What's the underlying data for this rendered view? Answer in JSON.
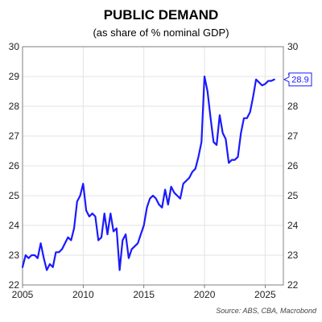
{
  "chart_data": {
    "type": "line",
    "title": "PUBLIC DEMAND",
    "subtitle": "(as share of % nominal GDP)",
    "source": "Source: ABS, CBA, Macrobond",
    "xlim": [
      2005,
      2026.5
    ],
    "ylim": [
      22,
      30
    ],
    "x_ticks": [
      "2005",
      "2010",
      "2015",
      "2020",
      "2025"
    ],
    "y_ticks": [
      "22",
      "23",
      "24",
      "25",
      "26",
      "27",
      "28",
      "29",
      "30"
    ],
    "grid": true,
    "line_color": "#1a1aff",
    "last_value_label": "28.9",
    "series": [
      {
        "name": "",
        "x": [
          2005.0,
          2005.25,
          2005.5,
          2005.75,
          2006.0,
          2006.25,
          2006.5,
          2006.75,
          2007.0,
          2007.25,
          2007.5,
          2007.75,
          2008.0,
          2008.25,
          2008.5,
          2008.75,
          2009.0,
          2009.25,
          2009.5,
          2009.75,
          2010.0,
          2010.25,
          2010.5,
          2010.75,
          2011.0,
          2011.25,
          2011.5,
          2011.75,
          2012.0,
          2012.25,
          2012.5,
          2012.75,
          2013.0,
          2013.25,
          2013.5,
          2013.75,
          2014.0,
          2014.25,
          2014.5,
          2014.75,
          2015.0,
          2015.25,
          2015.5,
          2015.75,
          2016.0,
          2016.25,
          2016.5,
          2016.75,
          2017.0,
          2017.25,
          2017.5,
          2017.75,
          2018.0,
          2018.25,
          2018.5,
          2018.75,
          2019.0,
          2019.25,
          2019.5,
          2019.75,
          2020.0,
          2020.25,
          2020.5,
          2020.75,
          2021.0,
          2021.25,
          2021.5,
          2021.75,
          2022.0,
          2022.25,
          2022.5,
          2022.75,
          2023.0,
          2023.25,
          2023.5,
          2023.75,
          2024.0,
          2024.25,
          2024.5,
          2024.75,
          2025.0,
          2025.25,
          2025.5,
          2025.75
        ],
        "values": [
          22.6,
          23.0,
          22.9,
          23.0,
          23.0,
          22.9,
          23.4,
          22.9,
          22.5,
          22.7,
          22.6,
          23.1,
          23.1,
          23.2,
          23.4,
          23.6,
          23.5,
          23.9,
          24.8,
          25.0,
          25.4,
          24.5,
          24.3,
          24.4,
          24.3,
          23.5,
          23.6,
          24.4,
          23.7,
          24.4,
          23.8,
          23.9,
          22.5,
          23.5,
          23.7,
          22.9,
          23.2,
          23.3,
          23.4,
          23.7,
          24.0,
          24.6,
          24.9,
          25.0,
          24.9,
          24.7,
          24.6,
          25.2,
          24.7,
          25.3,
          25.1,
          25.0,
          24.9,
          25.4,
          25.5,
          25.6,
          25.8,
          25.9,
          26.3,
          26.8,
          29.0,
          28.5,
          27.6,
          26.8,
          26.7,
          27.7,
          27.1,
          26.9,
          26.1,
          26.2,
          26.2,
          26.3,
          27.1,
          27.6,
          27.6,
          27.8,
          28.3,
          28.9,
          28.8,
          28.7,
          28.75,
          28.85,
          28.85,
          28.9
        ]
      }
    ]
  }
}
